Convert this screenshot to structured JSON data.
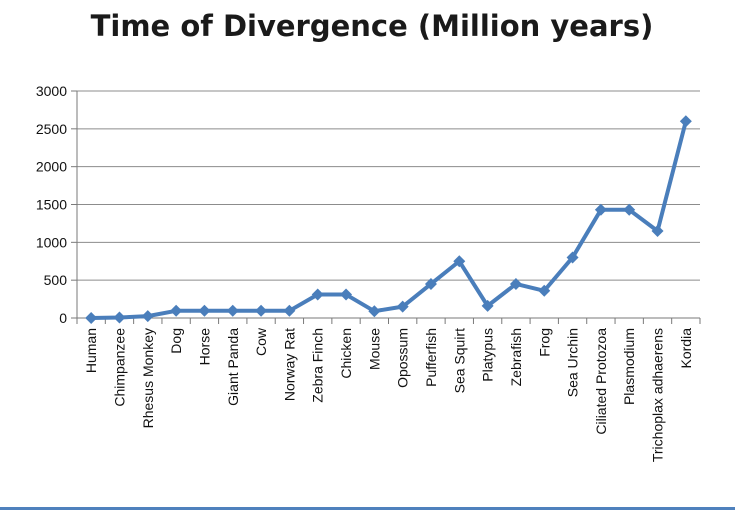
{
  "colors": {
    "series": "#4a7ebb",
    "bottom_rule": "#4f81bd"
  },
  "chart_data": {
    "type": "line",
    "title": "Time of Divergence (Million years)",
    "xlabel": "",
    "ylabel": "",
    "ylim": [
      0,
      3000
    ],
    "yticks": [
      0,
      500,
      1000,
      1500,
      2000,
      2500,
      3000
    ],
    "grid": true,
    "legend": "none",
    "marker": "diamond",
    "categories": [
      "Human",
      "Chimpanzee",
      "Rhesus Monkey",
      "Dog",
      "Horse",
      "Giant Panda",
      "Cow",
      "Norway Rat",
      "Zebra Finch",
      "Chicken",
      "Mouse",
      "Opossum",
      "Pufferfish",
      "Sea Squirt",
      "Platypus",
      "Zebrafish",
      "Frog",
      "Sea Urchin",
      "Ciliated Protozoa",
      "Plasmodium",
      "Trichoplax adhaerens",
      "Kordia"
    ],
    "series": [
      {
        "values": [
          0,
          6,
          25,
          95,
          95,
          95,
          95,
          95,
          310,
          310,
          90,
          150,
          450,
          750,
          160,
          450,
          360,
          800,
          1430,
          1430,
          1150,
          2600
        ]
      }
    ]
  }
}
